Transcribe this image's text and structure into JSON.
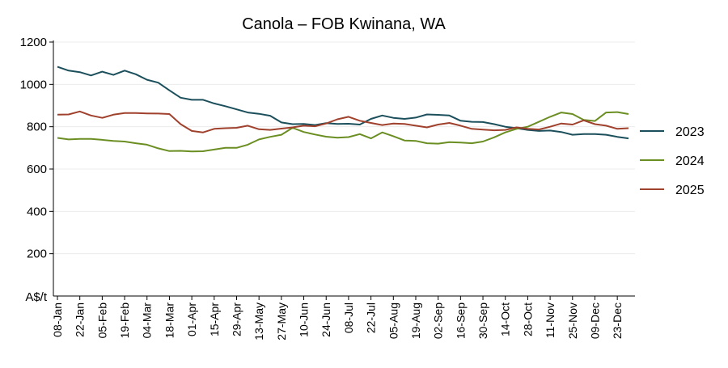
{
  "chart_data": {
    "type": "line",
    "title": "Canola – FOB Kwinana, WA",
    "ylabel": "A$/t",
    "xlabel": "",
    "ylim": [
      0,
      1200
    ],
    "yticks": [
      200,
      400,
      600,
      800,
      1000,
      1200
    ],
    "grid": "horizontal",
    "legend_position": "right",
    "categories": [
      "08-Jan",
      "15-Jan",
      "22-Jan",
      "29-Jan",
      "05-Feb",
      "12-Feb",
      "19-Feb",
      "26-Feb",
      "04-Mar",
      "11-Mar",
      "18-Mar",
      "25-Mar",
      "01-Apr",
      "08-Apr",
      "15-Apr",
      "22-Apr",
      "29-Apr",
      "06-May",
      "13-May",
      "20-May",
      "27-May",
      "03-Jun",
      "10-Jun",
      "17-Jun",
      "24-Jun",
      "01-Jul",
      "08-Jul",
      "15-Jul",
      "22-Jul",
      "29-Jul",
      "05-Aug",
      "12-Aug",
      "19-Aug",
      "26-Aug",
      "02-Sep",
      "09-Sep",
      "16-Sep",
      "23-Sep",
      "30-Sep",
      "07-Oct",
      "14-Oct",
      "21-Oct",
      "28-Oct",
      "04-Nov",
      "11-Nov",
      "18-Nov",
      "25-Nov",
      "02-Dec",
      "09-Dec",
      "16-Dec",
      "23-Dec",
      "30-Dec"
    ],
    "tick_labels": [
      "08-Jan",
      "22-Jan",
      "05-Feb",
      "19-Feb",
      "04-Mar",
      "18-Mar",
      "01-Apr",
      "15-Apr",
      "29-Apr",
      "13-May",
      "27-May",
      "10-Jun",
      "24-Jun",
      "08-Jul",
      "22-Jul",
      "05-Aug",
      "19-Aug",
      "02-Sep",
      "16-Sep",
      "30-Sep",
      "14-Oct",
      "28-Oct",
      "11-Nov",
      "25-Nov",
      "09-Dec",
      "23-Dec"
    ],
    "series": [
      {
        "name": "2023",
        "color": "#1b4f5b",
        "values": [
          1083,
          1065,
          1058,
          1042,
          1060,
          1045,
          1065,
          1048,
          1022,
          1008,
          972,
          937,
          927,
          927,
          910,
          897,
          882,
          867,
          861,
          852,
          820,
          812,
          813,
          808,
          817,
          813,
          814,
          810,
          837,
          853,
          842,
          837,
          843,
          858,
          856,
          853,
          828,
          823,
          822,
          812,
          800,
          793,
          785,
          780,
          782,
          775,
          762,
          765,
          765,
          762,
          752,
          745
        ]
      },
      {
        "name": "2024",
        "color": "#6b8e23",
        "values": [
          747,
          740,
          742,
          742,
          738,
          733,
          730,
          722,
          715,
          698,
          685,
          686,
          683,
          684,
          692,
          700,
          700,
          715,
          740,
          752,
          762,
          795,
          775,
          763,
          753,
          748,
          751,
          765,
          745,
          773,
          755,
          735,
          733,
          722,
          720,
          727,
          725,
          722,
          730,
          750,
          773,
          790,
          800,
          823,
          847,
          867,
          860,
          832,
          827,
          867,
          869,
          860
        ]
      },
      {
        "name": "2025",
        "color": "#a0412d",
        "values": [
          857,
          858,
          872,
          853,
          842,
          857,
          865,
          865,
          863,
          862,
          860,
          812,
          780,
          773,
          790,
          793,
          795,
          805,
          788,
          785,
          791,
          797,
          805,
          802,
          815,
          835,
          847,
          828,
          818,
          808,
          815,
          813,
          805,
          797,
          810,
          818,
          805,
          790,
          786,
          783,
          785,
          797,
          790,
          787,
          800,
          815,
          810,
          830,
          812,
          805,
          790,
          793
        ]
      }
    ]
  }
}
